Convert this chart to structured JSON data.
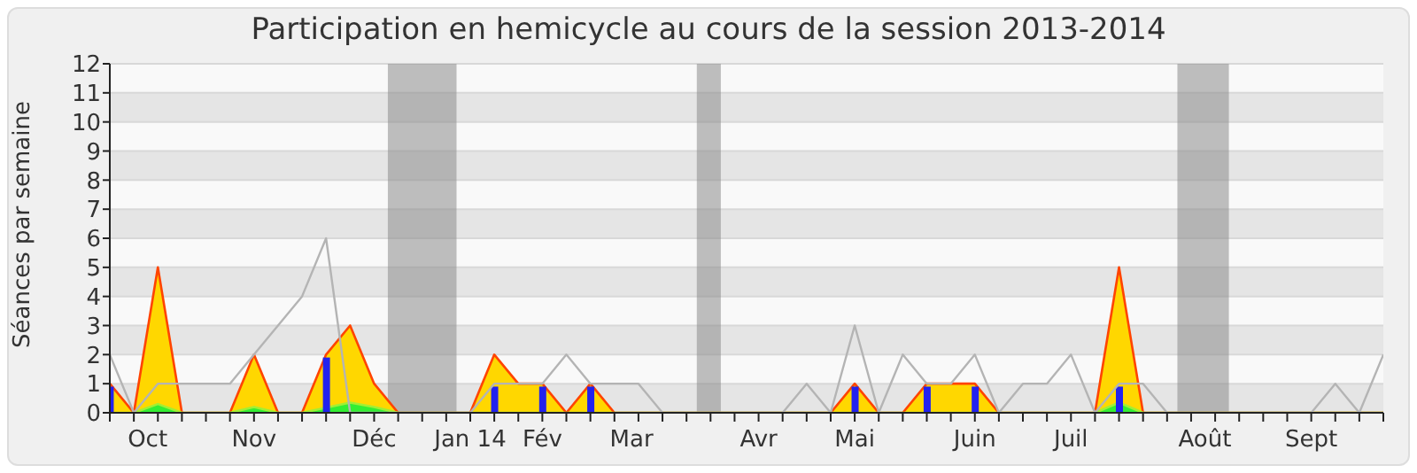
{
  "chart_data": {
    "type": "area",
    "title": "Participation en hemicycle au cours de la session 2013-2014",
    "ylabel": "Séances par semaine",
    "x": [
      "2013-09-30",
      "2013-10-07",
      "2013-10-14",
      "2013-10-21",
      "2013-10-28",
      "2013-11-04",
      "2013-11-11",
      "2013-11-18",
      "2013-11-25",
      "2013-12-02",
      "2013-12-09",
      "2013-12-16",
      "2013-12-23",
      "2013-12-30",
      "2014-01-06",
      "2014-01-13",
      "2014-01-20",
      "2014-01-27",
      "2014-02-03",
      "2014-02-10",
      "2014-02-17",
      "2014-02-24",
      "2014-03-03",
      "2014-03-10",
      "2014-03-17",
      "2014-03-24",
      "2014-03-31",
      "2014-04-07",
      "2014-04-14",
      "2014-04-21",
      "2014-04-28",
      "2014-05-05",
      "2014-05-12",
      "2014-05-19",
      "2014-05-26",
      "2014-06-02",
      "2014-06-09",
      "2014-06-16",
      "2014-06-23",
      "2014-06-30",
      "2014-07-07",
      "2014-07-14",
      "2014-07-21",
      "2014-07-28",
      "2014-08-04",
      "2014-08-11",
      "2014-08-18",
      "2014-08-25",
      "2014-09-01",
      "2014-09-08",
      "2014-09-15",
      "2014-09-22",
      "2014-09-29",
      "2014-10-06"
    ],
    "series": [
      {
        "type": "line",
        "color": "#b4b4b4",
        "values": [
          2,
          0,
          1,
          1,
          1,
          1,
          2,
          3,
          4,
          6,
          0,
          0,
          0,
          0,
          0,
          0,
          1,
          1,
          1,
          2,
          1,
          1,
          1,
          0,
          0,
          0,
          0,
          0,
          0,
          1,
          0,
          3,
          0,
          2,
          1,
          1,
          2,
          0,
          1,
          1,
          2,
          0,
          1,
          1,
          0,
          0,
          0,
          0,
          0,
          0,
          0,
          1,
          0,
          2
        ]
      },
      {
        "color": "#ffd700",
        "values": [
          1,
          0,
          5,
          0,
          0,
          0,
          2,
          0,
          0,
          2,
          3,
          1,
          0,
          0,
          0,
          0,
          2,
          1,
          1,
          0,
          1,
          0,
          0,
          0,
          0,
          0,
          0,
          0,
          0,
          0,
          0,
          1,
          0,
          0,
          1,
          1,
          1,
          0,
          0,
          0,
          0,
          0,
          5,
          0,
          0,
          0,
          0,
          0,
          0,
          0,
          0,
          0,
          0,
          0
        ]
      },
      {
        "color": "#33ee33",
        "values": [
          0,
          0,
          0.3,
          0,
          0,
          0,
          0.2,
          0,
          0,
          null,
          0.35,
          0.2,
          0,
          0,
          0,
          0,
          0,
          0,
          0,
          0,
          0,
          0,
          0,
          0,
          0,
          0,
          0,
          0,
          0,
          0,
          0,
          0,
          0,
          0,
          0,
          0,
          0,
          0,
          0,
          0,
          0,
          0,
          0.35,
          0,
          0,
          0,
          0,
          0,
          0,
          0,
          0,
          0,
          0,
          0
        ]
      },
      {
        "type": "bar",
        "color": "#2222ee",
        "values": [
          0.9,
          null,
          null,
          null,
          null,
          null,
          null,
          null,
          null,
          1.9,
          null,
          null,
          null,
          null,
          null,
          null,
          0.9,
          null,
          0.9,
          null,
          0.9,
          null,
          null,
          null,
          null,
          null,
          null,
          null,
          null,
          null,
          null,
          0.9,
          null,
          null,
          0.9,
          null,
          0.9,
          null,
          null,
          null,
          null,
          null,
          0.9,
          null,
          null,
          null,
          null,
          null,
          null,
          null,
          null,
          null,
          null,
          null
        ]
      }
    ],
    "xlim": [
      "2013-09-30",
      "2014-10-06"
    ],
    "xticks": [
      {
        "value": "2013-09-30",
        "label": null
      },
      {
        "value": "2013-10-07",
        "label": null
      },
      {
        "value": "2013-10-11",
        "label": "Oct"
      },
      {
        "value": "2013-10-14",
        "label": null
      },
      {
        "value": "2013-10-21",
        "label": null
      },
      {
        "value": "2013-10-28",
        "label": null
      },
      {
        "value": "2013-11-04",
        "label": null
      },
      {
        "value": "2013-11-11",
        "label": "Nov"
      },
      {
        "value": "2013-11-18",
        "label": null
      },
      {
        "value": "2013-11-25",
        "label": null
      },
      {
        "value": "2013-12-02",
        "label": null
      },
      {
        "value": "2013-12-09",
        "label": null
      },
      {
        "value": "2013-12-16",
        "label": "Déc"
      },
      {
        "value": "2013-12-23",
        "label": null
      },
      {
        "value": "2013-12-30",
        "label": null
      },
      {
        "value": "2014-01-06",
        "label": null
      },
      {
        "value": "2014-01-13",
        "label": "Jan 14"
      },
      {
        "value": "2014-01-20",
        "label": null
      },
      {
        "value": "2014-01-27",
        "label": null
      },
      {
        "value": "2014-02-03",
        "label": "Fév"
      },
      {
        "value": "2014-02-10",
        "label": null
      },
      {
        "value": "2014-02-17",
        "label": null
      },
      {
        "value": "2014-02-24",
        "label": null
      },
      {
        "value": "2014-03-01",
        "label": "Mar"
      },
      {
        "value": "2014-03-03",
        "label": null
      },
      {
        "value": "2014-03-10",
        "label": null
      },
      {
        "value": "2014-03-17",
        "label": null
      },
      {
        "value": "2014-03-24",
        "label": null
      },
      {
        "value": "2014-03-31",
        "label": null
      },
      {
        "value": "2014-04-07",
        "label": "Avr"
      },
      {
        "value": "2014-04-14",
        "label": null
      },
      {
        "value": "2014-04-21",
        "label": null
      },
      {
        "value": "2014-04-28",
        "label": null
      },
      {
        "value": "2014-05-05",
        "label": "Mai"
      },
      {
        "value": "2014-05-12",
        "label": null
      },
      {
        "value": "2014-05-19",
        "label": null
      },
      {
        "value": "2014-05-26",
        "label": null
      },
      {
        "value": "2014-06-02",
        "label": null
      },
      {
        "value": "2014-06-09",
        "label": "Juin"
      },
      {
        "value": "2014-06-16",
        "label": null
      },
      {
        "value": "2014-06-23",
        "label": null
      },
      {
        "value": "2014-06-30",
        "label": null
      },
      {
        "value": "2014-07-07",
        "label": "Juil"
      },
      {
        "value": "2014-07-14",
        "label": null
      },
      {
        "value": "2014-07-21",
        "label": null
      },
      {
        "value": "2014-07-28",
        "label": null
      },
      {
        "value": "2014-08-04",
        "label": null
      },
      {
        "value": "2014-08-11",
        "label": null
      },
      {
        "value": "2014-08-15",
        "label": "Août"
      },
      {
        "value": "2014-08-18",
        "label": null
      },
      {
        "value": "2014-08-25",
        "label": null
      },
      {
        "value": "2014-09-01",
        "label": null
      },
      {
        "value": "2014-09-08",
        "label": null
      },
      {
        "value": "2014-09-15",
        "label": "Sept"
      },
      {
        "value": "2014-09-22",
        "label": null
      },
      {
        "value": "2014-09-29",
        "label": null
      },
      {
        "value": "2014-10-06",
        "label": null
      }
    ],
    "ylim": [
      0,
      12
    ],
    "yticks": [
      0,
      1,
      2,
      3,
      4,
      5,
      6,
      7,
      8,
      9,
      10,
      11,
      12
    ],
    "grid": "y",
    "bands": [
      {
        "axis": "x",
        "from": "2013-12-20",
        "to": "2014-01-09",
        "color": "#8c8c8c"
      },
      {
        "axis": "x",
        "from": "2014-03-20",
        "to": "2014-03-27",
        "color": "#8c8c8c"
      },
      {
        "axis": "x",
        "from": "2014-08-07",
        "to": "2014-08-22",
        "color": "#8c8c8c"
      }
    ]
  }
}
